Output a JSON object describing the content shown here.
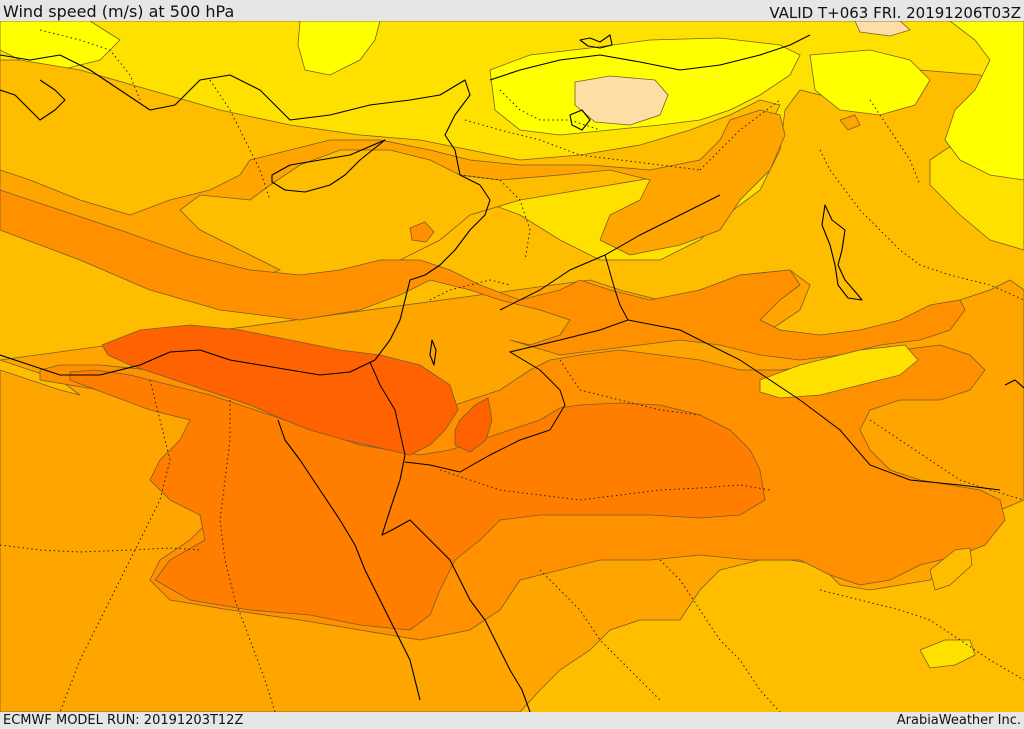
{
  "header": {
    "title": "Wind speed (m/s) at 500 hPa",
    "valid": "VALID T+063 FRI. 20191206T03Z"
  },
  "footer": {
    "model_run": "ECMWF MODEL RUN: 20191203T12Z",
    "credit": "ArabiaWeather Inc."
  },
  "palette": {
    "pale": "#ffdea6",
    "yellow_bright": "#ffff00",
    "yellow": "#ffe100",
    "amber": "#ffbd00",
    "orange_light": "#ffa500",
    "orange": "#ff9100",
    "orange_dark": "#ff7e00",
    "red_orange": "#ff6200"
  }
}
